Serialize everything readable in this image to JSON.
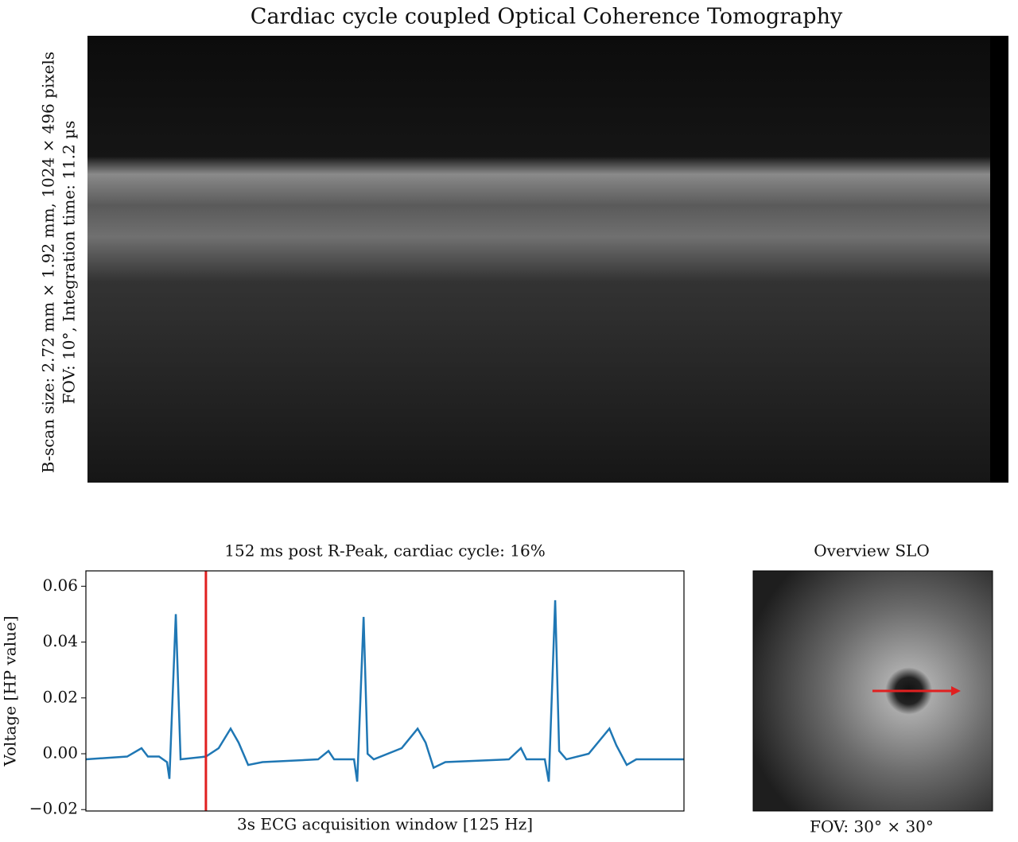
{
  "title": "Cardiac cycle coupled Optical Coherence Tomography",
  "oct": {
    "label_line1": "B-scan size: 2.72 mm × 1.92 mm, 1024 × 496 pixels",
    "label_line2": "FOV: 10°, Integration time: 11.2 µs"
  },
  "chart_data": {
    "type": "line",
    "title": "152 ms post R-Peak, cardiac cycle: 16%",
    "x_label": "3s ECG acquisition window [125 Hz]",
    "y_label": "Voltage [HP value]",
    "xlim": [
      0,
      3
    ],
    "ylim": [
      -0.0205,
      0.0655
    ],
    "yticks": [
      0.06,
      0.04,
      0.02,
      {
        "value": 0,
        "label": "0.00"
      },
      {
        "value": -0.02,
        "label": "−0.02"
      }
    ],
    "cursor_x": 0.602,
    "cursor_color": "#e02020",
    "series": [
      {
        "color": "#1f77b4",
        "x": [
          0,
          0.207,
          0.279,
          0.311,
          0.367,
          0.407,
          0.419,
          0.451,
          0.475,
          0.602,
          0.666,
          0.726,
          0.766,
          0.814,
          0.886,
          1.165,
          1.217,
          1.245,
          1.345,
          1.361,
          1.393,
          1.413,
          1.444,
          1.584,
          1.664,
          1.704,
          1.744,
          1.803,
          2.122,
          2.182,
          2.21,
          2.302,
          2.322,
          2.354,
          2.374,
          2.41,
          2.522,
          2.626,
          2.661,
          2.713,
          2.761,
          3
        ],
        "values": [
          -0.002,
          -0.001,
          0.002,
          -0.001,
          -0.001,
          -0.003,
          -0.009,
          0.05,
          -0.002,
          -0.001,
          0.002,
          0.009,
          0.004,
          -0.004,
          -0.003,
          -0.002,
          0.001,
          -0.002,
          -0.002,
          -0.01,
          0.049,
          0,
          -0.002,
          0.002,
          0.009,
          0.004,
          -0.005,
          -0.003,
          -0.002,
          0.002,
          -0.002,
          -0.002,
          -0.01,
          0.055,
          0.001,
          -0.002,
          0,
          0.009,
          0.003,
          -0.004,
          -0.002,
          -0.002
        ]
      }
    ]
  },
  "slo": {
    "title": "Overview SLO",
    "caption": "FOV: 30° × 30°"
  }
}
